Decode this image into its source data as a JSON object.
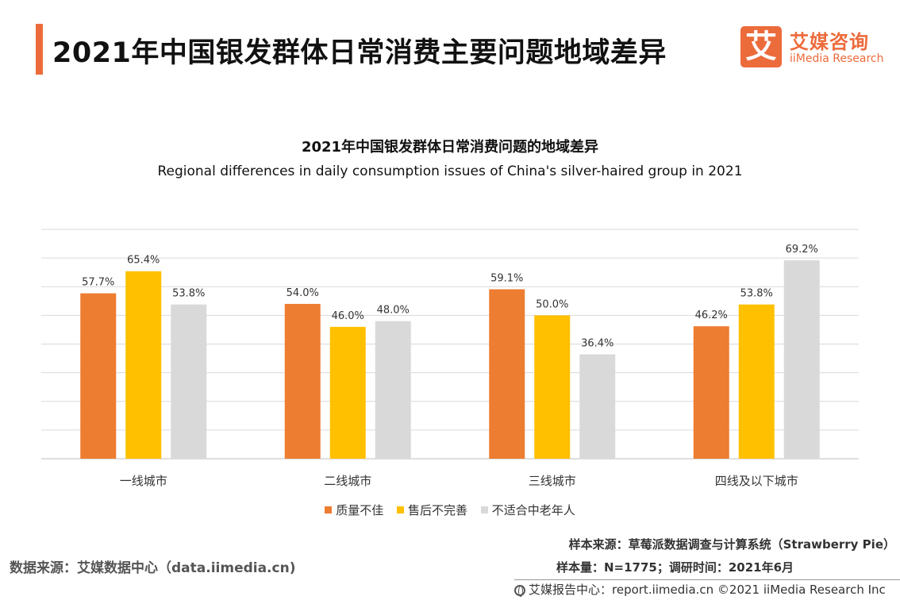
{
  "header": {
    "title": "2021年中国银发群体日常消费主要问题地域差异"
  },
  "logo": {
    "mark": "艾",
    "name_cn": "艾媒咨询",
    "name_en": "iiMedia Research"
  },
  "colors": {
    "accent": "#ec6b3b",
    "series": [
      "#ed7d31",
      "#ffc000",
      "#d9d9d9"
    ],
    "gridline": "#d9d9d9"
  },
  "chart_data": {
    "type": "bar",
    "title": "2021年中国银发群体日常消费问题的地域差异",
    "subtitle": "Regional differences in daily consumption issues of China's silver-haired group in 2021",
    "categories": [
      "一线城市",
      "二线城市",
      "三线城市",
      "四线及以下城市"
    ],
    "series": [
      {
        "name": "质量不佳",
        "values": [
          57.7,
          54.0,
          59.1,
          46.2
        ]
      },
      {
        "name": "售后不完善",
        "values": [
          65.4,
          46.0,
          50.0,
          53.8
        ]
      },
      {
        "name": "不适合中老年人",
        "values": [
          53.8,
          48.0,
          36.4,
          69.2
        ]
      }
    ],
    "value_labels": [
      [
        "57.7%",
        "54.0%",
        "59.1%",
        "46.2%"
      ],
      [
        "65.4%",
        "46.0%",
        "50.0%",
        "53.8%"
      ],
      [
        "53.8%",
        "48.0%",
        "36.4%",
        "69.2%"
      ]
    ],
    "ylim": [
      0,
      80
    ],
    "y_gridline_step": 10,
    "y_tick_labels_visible": false,
    "grid": true,
    "legend_position": "bottom"
  },
  "source": {
    "data_source": "数据来源：艾媒数据中心（data.iimedia.cn)",
    "sample_source": "样本来源：草莓派数据调查与计算系统（Strawberry Pie）",
    "sample_size": "样本量：N=1775；调研时间：2021年6月",
    "footer": "艾媒报告中心：report.iimedia.cn  ©2021  iiMedia Research  Inc"
  }
}
